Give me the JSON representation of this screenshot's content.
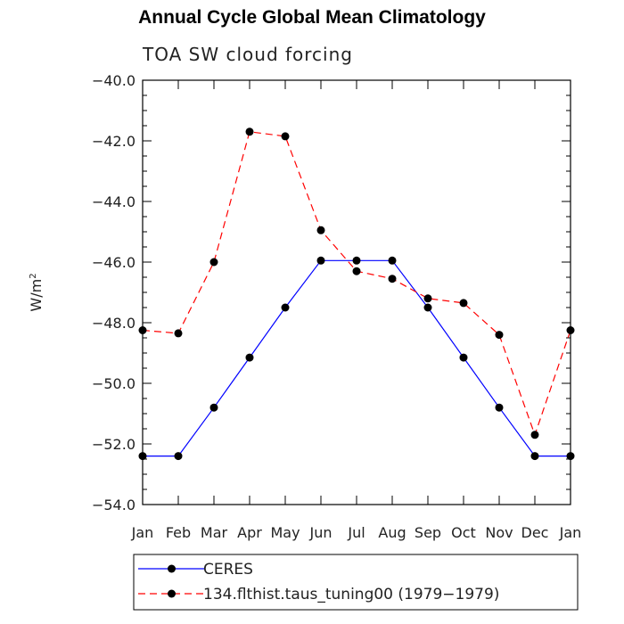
{
  "chart_data": {
    "type": "line",
    "title": "Annual Cycle Global Mean Climatology",
    "subtitle": "TOA SW cloud forcing",
    "ylabel": "W/m",
    "ylabel_superscript": "2",
    "xlabel": "",
    "categories": [
      "Jan",
      "Feb",
      "Mar",
      "Apr",
      "May",
      "Jun",
      "Jul",
      "Aug",
      "Sep",
      "Oct",
      "Nov",
      "Dec",
      "Jan"
    ],
    "ylim": [
      -54.0,
      -40.0
    ],
    "yticks": [
      -54.0,
      -52.0,
      -50.0,
      -48.0,
      -46.0,
      -44.0,
      -42.0,
      -40.0
    ],
    "ytick_labels": [
      "−54.0",
      "−52.0",
      "−50.0",
      "−48.0",
      "−46.0",
      "−44.0",
      "−42.0",
      "−40.0"
    ],
    "series": [
      {
        "name": "CERES",
        "color": "#0000ff",
        "dash": "solid",
        "values": [
          -52.4,
          -52.4,
          -50.8,
          -49.15,
          -47.5,
          -45.95,
          -45.95,
          -45.95,
          -47.5,
          -49.15,
          -50.8,
          -52.4,
          -52.4
        ]
      },
      {
        "name": "134.flthist.taus_tuning00 (1979−1979)",
        "color": "#ff0000",
        "dash": "dashed",
        "values": [
          -48.25,
          -48.35,
          -46.0,
          -41.7,
          -41.85,
          -44.95,
          -46.3,
          -46.55,
          -47.2,
          -47.35,
          -48.4,
          -51.7,
          -48.25
        ]
      }
    ],
    "legend_position": "bottom",
    "grid": false
  }
}
